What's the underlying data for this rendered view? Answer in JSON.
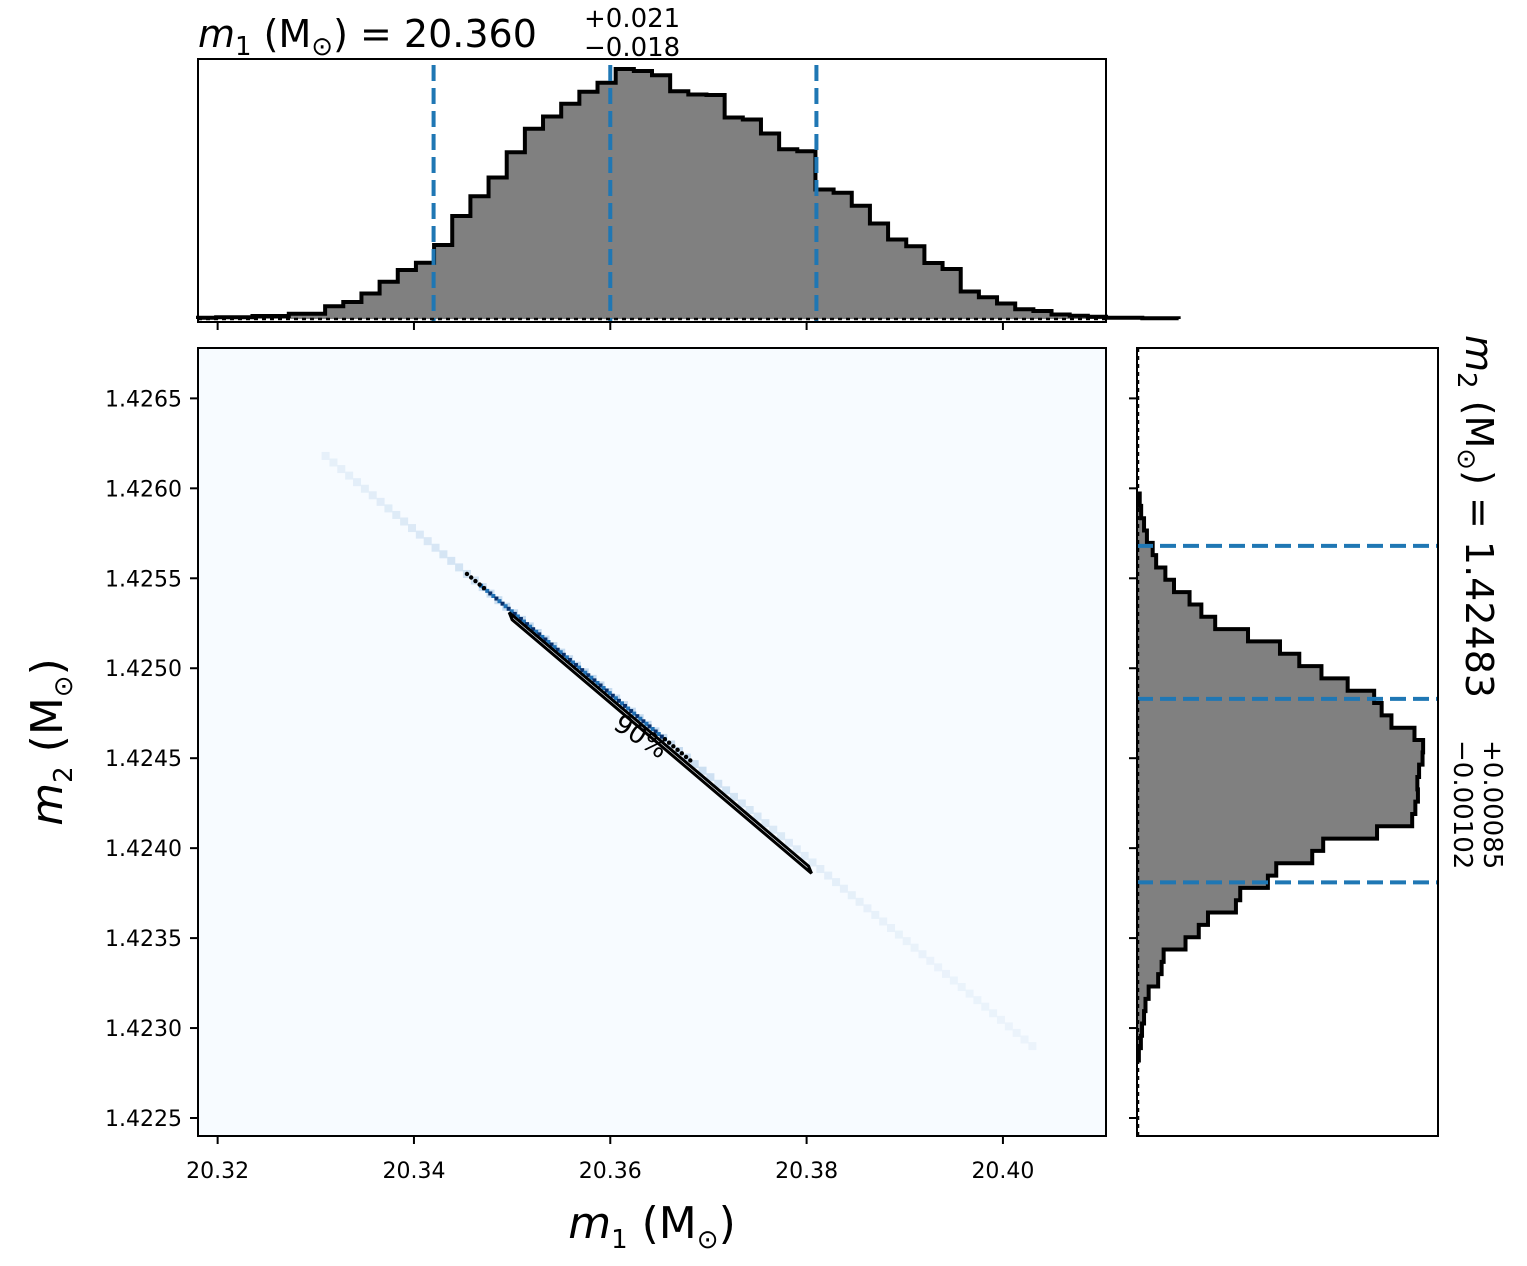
{
  "colors": {
    "hist_fill": "#808080",
    "hist_edge": "#000000",
    "quantile_line": "#1f77b4",
    "density_low": "#f7fbff",
    "density_high": "#08306b",
    "contour": "#000000"
  },
  "top_title": {
    "var": "m",
    "sub": "1",
    "unit": " (M",
    "unit_sub": "⊙",
    "unit_close": ") = ",
    "value": "20.360",
    "plus": "+0.021",
    "minus": "−0.018"
  },
  "right_title": {
    "var": "m",
    "sub": "2",
    "unit": " (M",
    "unit_sub": "⊙",
    "unit_close": ") = ",
    "value": "1.42483",
    "plus": "+0.00085",
    "minus": "−0.00102"
  },
  "x_axis": {
    "var": "m",
    "sub": "1",
    "unit": " (M",
    "unit_sub": "⊙",
    "unit_close": ")"
  },
  "y_axis": {
    "var": "m",
    "sub": "2",
    "unit": " (M",
    "unit_sub": "⊙",
    "unit_close": ")"
  },
  "contour_label": "90%",
  "chart_data": [
    {
      "type": "histogram",
      "panel": "top-marginal",
      "variable": "m1",
      "xlim": [
        20.318,
        20.4105
      ],
      "x_ticks": [
        20.32,
        20.34,
        20.36,
        20.38,
        20.4
      ],
      "quantiles": [
        20.342,
        20.36,
        20.381
      ],
      "bin_edges_start": 20.318,
      "bin_width": 0.00185,
      "counts": [
        0.005,
        0.007,
        0.007,
        0.012,
        0.012,
        0.021,
        0.021,
        0.051,
        0.068,
        0.102,
        0.149,
        0.196,
        0.225,
        0.296,
        0.412,
        0.491,
        0.566,
        0.667,
        0.761,
        0.81,
        0.861,
        0.909,
        0.945,
        1.0,
        0.992,
        0.975,
        0.911,
        0.898,
        0.896,
        0.806,
        0.798,
        0.742,
        0.679,
        0.671,
        0.518,
        0.505,
        0.453,
        0.382,
        0.318,
        0.291,
        0.224,
        0.2,
        0.11,
        0.087,
        0.062,
        0.039,
        0.032,
        0.018,
        0.013,
        0.009,
        0.005,
        0.005,
        0.003,
        0.003
      ]
    },
    {
      "type": "heatmap",
      "panel": "joint",
      "xlim": [
        20.318,
        20.4105
      ],
      "ylim": [
        1.4224,
        1.42678
      ],
      "x_ticks": [
        20.32,
        20.34,
        20.36,
        20.38,
        20.4
      ],
      "y_ticks": [
        1.4225,
        1.423,
        1.4235,
        1.424,
        1.4245,
        1.425,
        1.4255,
        1.426,
        1.4265
      ],
      "ridge_start": [
        20.331,
        1.42618
      ],
      "ridge_end": [
        20.403,
        1.4229
      ],
      "contour_level": "90%",
      "contour_polygon": [
        [
          20.3497,
          1.42531
        ],
        [
          20.35,
          1.42527
        ],
        [
          20.3805,
          1.42386
        ],
        [
          20.3802,
          1.4239
        ]
      ]
    },
    {
      "type": "histogram",
      "panel": "right-marginal",
      "variable": "m2",
      "orientation": "horizontal",
      "ylim": [
        1.4224,
        1.42678
      ],
      "y_ticks": [
        1.4225,
        1.423,
        1.4235,
        1.424,
        1.4245,
        1.425,
        1.4255,
        1.426,
        1.4265
      ],
      "quantiles": [
        1.42381,
        1.42483,
        1.42568
      ],
      "bin_edges_start": 1.42282,
      "bin_width": 6.85e-05,
      "counts": [
        0.003,
        0.01,
        0.014,
        0.021,
        0.026,
        0.037,
        0.07,
        0.082,
        0.089,
        0.165,
        0.211,
        0.243,
        0.34,
        0.355,
        0.451,
        0.48,
        0.605,
        0.643,
        0.83,
        0.952,
        0.963,
        0.972,
        0.97,
        0.976,
        0.988,
        0.99,
        0.96,
        0.88,
        0.846,
        0.82,
        0.728,
        0.637,
        0.56,
        0.493,
        0.382,
        0.268,
        0.22,
        0.179,
        0.125,
        0.095,
        0.063,
        0.051,
        0.031,
        0.021,
        0.011,
        0.006
      ]
    }
  ]
}
